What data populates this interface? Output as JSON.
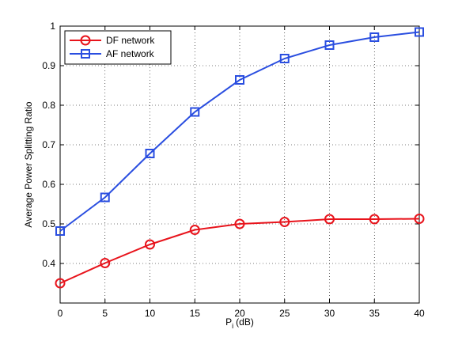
{
  "chart_data": {
    "type": "line",
    "x_label": [
      "P",
      "i",
      "(dB)"
    ],
    "y_label": "Average Power Splitting Ratio",
    "x": [
      0,
      5,
      10,
      15,
      20,
      25,
      30,
      35,
      40
    ],
    "series": [
      {
        "name": "DF network",
        "color": "#e8141c",
        "marker": "circle",
        "values": [
          0.35,
          0.401,
          0.448,
          0.485,
          0.5,
          0.505,
          0.512,
          0.512,
          0.513
        ]
      },
      {
        "name": "AF network",
        "color": "#2a4ee0",
        "marker": "square",
        "values": [
          0.482,
          0.567,
          0.678,
          0.783,
          0.864,
          0.918,
          0.952,
          0.972,
          0.985
        ]
      }
    ],
    "xlim": [
      0,
      40
    ],
    "xticks": [
      0,
      5,
      10,
      15,
      20,
      25,
      30,
      35,
      40
    ],
    "ylim": [
      0.3,
      1
    ],
    "yticks": [
      0.4,
      0.5,
      0.6,
      0.7,
      0.8,
      0.9,
      1
    ],
    "grid": true,
    "legend": "top-left"
  }
}
